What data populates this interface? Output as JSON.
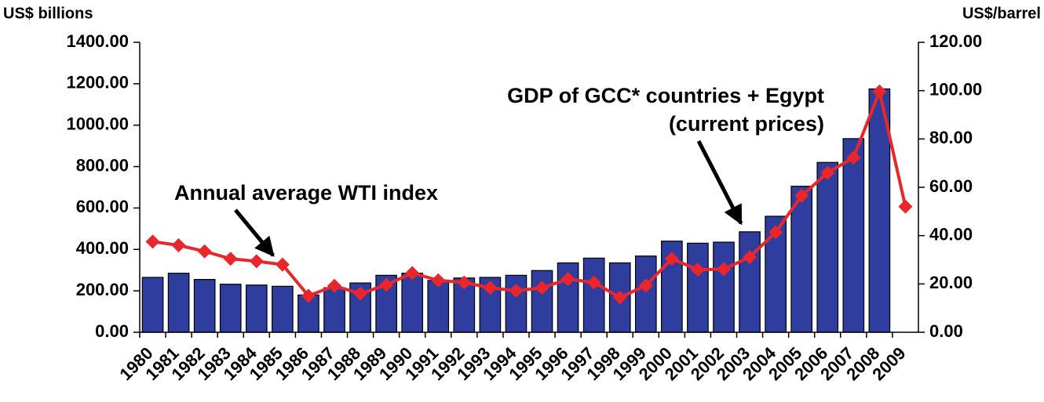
{
  "chart_data": {
    "type": "bar-line",
    "y_label": "US$ billions",
    "y2_label": "US$/barrel",
    "annotations": [
      "Annual average WTI index",
      "GDP of GCC* countries + Egypt",
      "(current prices)"
    ],
    "categories": [
      "1980",
      "1981",
      "1982",
      "1983",
      "1984",
      "1985",
      "1986",
      "1987",
      "1988",
      "1989",
      "1990",
      "1991",
      "1992",
      "1993",
      "1994",
      "1995",
      "1996",
      "1997",
      "1998",
      "1999",
      "2000",
      "2001",
      "2002",
      "2003",
      "2004",
      "2005",
      "2006",
      "2007",
      "2008",
      "2009"
    ],
    "series": [
      {
        "type": "bar",
        "color": "#2e3d9e",
        "axis": "y",
        "values": [
          265,
          285,
          255,
          232,
          228,
          222,
          180,
          215,
          238,
          275,
          285,
          250,
          262,
          265,
          275,
          298,
          335,
          358,
          335,
          368,
          440,
          430,
          435,
          485,
          560,
          705,
          820,
          935,
          1175,
          null
        ]
      },
      {
        "type": "line",
        "color": "#e8262b",
        "axis": "y2",
        "values": [
          37.5,
          36,
          33.5,
          30.4,
          29.4,
          28,
          15.1,
          19.2,
          16,
          19.6,
          24.5,
          21.5,
          20.6,
          18.4,
          17.2,
          18.4,
          22,
          20.6,
          14.4,
          19.3,
          30.4,
          25.9,
          26.1,
          31.1,
          41.4,
          56.5,
          66,
          72.3,
          99.6,
          52
        ]
      }
    ],
    "ylim": [
      0,
      1400
    ],
    "yticks": [
      {
        "value": 0,
        "label": "0.00"
      },
      {
        "value": 200,
        "label": "200.00"
      },
      {
        "value": 400,
        "label": "400.00"
      },
      {
        "value": 600,
        "label": "600.00"
      },
      {
        "value": 800,
        "label": "800.00"
      },
      {
        "value": 1000,
        "label": "1000.00"
      },
      {
        "value": 1200,
        "label": "1200.00"
      },
      {
        "value": 1400,
        "label": "1400.00"
      }
    ],
    "y2lim": [
      0,
      120
    ],
    "y2ticks": [
      {
        "value": 0,
        "label": "0.00"
      },
      {
        "value": 20,
        "label": "20.00"
      },
      {
        "value": 40,
        "label": "40.00"
      },
      {
        "value": 60,
        "label": "60.00"
      },
      {
        "value": 80,
        "label": "80.00"
      },
      {
        "value": 100,
        "label": "100.00"
      },
      {
        "value": 120,
        "label": "120.00"
      }
    ]
  }
}
